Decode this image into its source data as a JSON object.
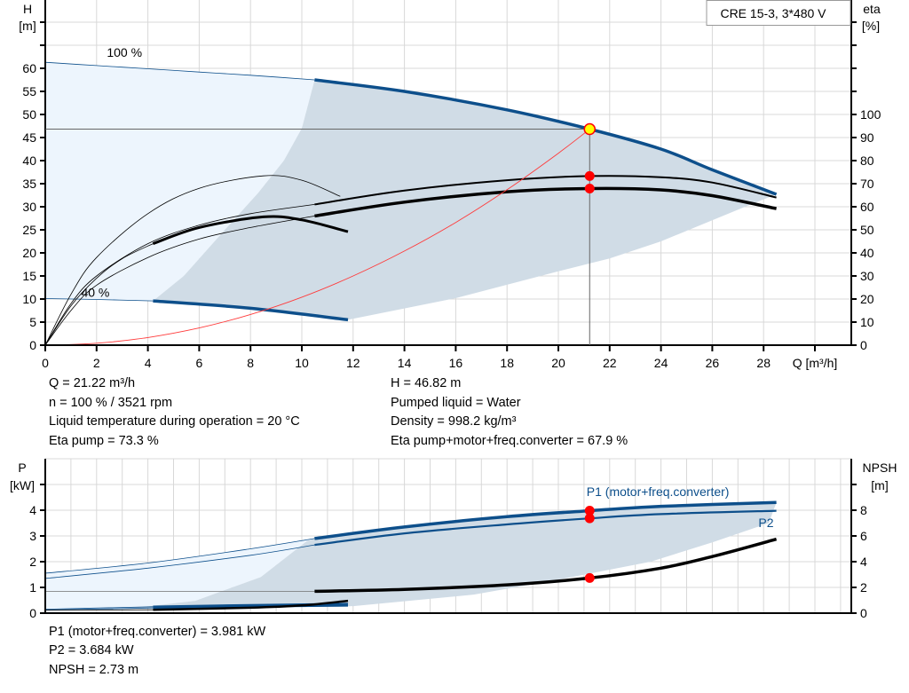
{
  "chart_data": [
    {
      "type": "line",
      "model_label": "CRE 15-3, 3*480 V",
      "xlabel": "Q [m³/h]",
      "ylabel_left": {
        "name": "H",
        "unit": "[m]"
      },
      "ylabel_right": {
        "name": "eta",
        "unit": "[%]"
      },
      "xlim": [
        0,
        31.4
      ],
      "ylim_left": [
        0,
        75
      ],
      "ylim_right": [
        0,
        150
      ],
      "x_ticks": [
        "0",
        "2",
        "4",
        "6",
        "8",
        "10",
        "12",
        "14",
        "16",
        "18",
        "20",
        "22",
        "24",
        "26",
        "28"
      ],
      "y_ticks_left": [
        "0",
        "5",
        "10",
        "15",
        "20",
        "25",
        "30",
        "35",
        "40",
        "45",
        "50",
        "55",
        "60"
      ],
      "y_ticks_right": [
        "0",
        "10",
        "20",
        "30",
        "40",
        "50",
        "60",
        "70",
        "80",
        "90",
        "100"
      ],
      "grid": true,
      "speed_labels": [
        {
          "text": "100 %",
          "q": 2.4,
          "h": 63.5
        },
        {
          "text": "40 %",
          "q": 1.4,
          "h": 11.4
        }
      ],
      "regions": [
        {
          "fill": "#edf5fd",
          "axis": "left",
          "points": [
            [
              0,
              61.3
            ],
            [
              2,
              60.6
            ],
            [
              4,
              59.9
            ],
            [
              6,
              59.2
            ],
            [
              8,
              58.5
            ],
            [
              10.5,
              57.5
            ],
            [
              10,
              47
            ],
            [
              9.3,
              40
            ],
            [
              8.3,
              33
            ],
            [
              7,
              25
            ],
            [
              5.4,
              15
            ],
            [
              4.2,
              9.6
            ],
            [
              2,
              9.9
            ],
            [
              0,
              10.1
            ]
          ]
        },
        {
          "fill": "#d0dce6",
          "axis": "left",
          "points": [
            [
              4.2,
              9.6
            ],
            [
              5.4,
              15
            ],
            [
              7,
              25
            ],
            [
              8.3,
              33
            ],
            [
              9.3,
              40
            ],
            [
              10,
              47
            ],
            [
              10.5,
              57.5
            ],
            [
              14,
              55
            ],
            [
              18,
              51
            ],
            [
              21.22,
              46.82
            ],
            [
              24,
              42.5
            ],
            [
              26,
              38
            ],
            [
              28.5,
              32.7
            ],
            [
              27.5,
              30.5
            ],
            [
              24,
              22.5
            ],
            [
              22,
              18.8
            ],
            [
              20,
              16
            ],
            [
              16,
              10.2
            ],
            [
              11.8,
              5.5
            ],
            [
              8,
              8
            ],
            [
              4.2,
              9.6
            ]
          ]
        }
      ],
      "series": [
        {
          "quantity": "H",
          "speed": "100 %",
          "axis": "left",
          "color": "#0d4f8b",
          "emphasized_from": 10.5,
          "points": [
            [
              0,
              61.3
            ],
            [
              2,
              60.6
            ],
            [
              4,
              59.9
            ],
            [
              6,
              59.2
            ],
            [
              8,
              58.5
            ],
            [
              10.5,
              57.5
            ],
            [
              14,
              55.0
            ],
            [
              18,
              51.0
            ],
            [
              21.22,
              46.82
            ],
            [
              24,
              42.5
            ],
            [
              26,
              38.0
            ],
            [
              28.5,
              32.7
            ]
          ]
        },
        {
          "quantity": "H",
          "speed": "40 %",
          "axis": "left",
          "color": "#0d4f8b",
          "emphasized_from": 4.2,
          "points": [
            [
              0,
              10.1
            ],
            [
              2,
              9.9
            ],
            [
              4.2,
              9.6
            ],
            [
              8,
              8.0
            ],
            [
              11.8,
              5.5
            ]
          ]
        },
        {
          "quantity": "Eta pump",
          "speed": "100 %",
          "axis": "right",
          "color": "#000000",
          "emphasized_from": 10.5,
          "weight": 2,
          "points": [
            [
              0,
              0
            ],
            [
              1,
              18
            ],
            [
              2,
              30
            ],
            [
              4,
              44
            ],
            [
              6,
              52
            ],
            [
              8,
              57
            ],
            [
              10.5,
              61
            ],
            [
              14,
              67
            ],
            [
              18,
              71.5
            ],
            [
              21.22,
              73.3
            ],
            [
              24,
              72.8
            ],
            [
              26,
              70.5
            ],
            [
              28.5,
              64
            ]
          ]
        },
        {
          "quantity": "Eta pump+motor+freq.converter",
          "speed": "100 %",
          "axis": "right",
          "color": "#000000",
          "emphasized_from": 10.5,
          "weight": 3.5,
          "points": [
            [
              0,
              0
            ],
            [
              1,
              15
            ],
            [
              2,
              26
            ],
            [
              4,
              38
            ],
            [
              6,
              46
            ],
            [
              8,
              51
            ],
            [
              10.5,
              56
            ],
            [
              14,
              62
            ],
            [
              18,
              66.5
            ],
            [
              21.22,
              67.9
            ],
            [
              24,
              67.3
            ],
            [
              26,
              64.8
            ],
            [
              28.5,
              59.2
            ]
          ]
        },
        {
          "quantity": "Eta pump",
          "speed": "40 %",
          "axis": "right",
          "color": "#000000",
          "emphasized_from": 99,
          "points": [
            [
              0,
              0
            ],
            [
              1,
              22
            ],
            [
              2,
              38
            ],
            [
              4,
              57
            ],
            [
              6,
              68
            ],
            [
              8.5,
              73.4
            ],
            [
              10,
              71.5
            ],
            [
              11.5,
              64.5
            ]
          ]
        },
        {
          "quantity": "Eta pump+motor+freq.converter",
          "speed": "40 %",
          "axis": "right",
          "color": "#000000",
          "emphasized_from": 4.2,
          "weight": 3,
          "points": [
            [
              0,
              0
            ],
            [
              1,
              17
            ],
            [
              2,
              29
            ],
            [
              3,
              37.5
            ],
            [
              4.2,
              44
            ],
            [
              6,
              51
            ],
            [
              8.5,
              55.6
            ],
            [
              10,
              54.3
            ],
            [
              11.8,
              49.2
            ]
          ]
        },
        {
          "quantity": "System curve",
          "axis": "left",
          "color": "#ff3b3b",
          "emphasized_from": 99,
          "points": [
            [
              0,
              0
            ],
            [
              2,
              0.42
            ],
            [
              4,
              1.66
            ],
            [
              6,
              3.74
            ],
            [
              8,
              6.65
            ],
            [
              10,
              10.4
            ],
            [
              12,
              15
            ],
            [
              14,
              20.4
            ],
            [
              16,
              26.6
            ],
            [
              18,
              33.7
            ],
            [
              20,
              41.6
            ],
            [
              21.22,
              46.82
            ]
          ]
        }
      ],
      "operating_point": {
        "q": 21.22,
        "h": 46.82,
        "eta_pump": 73.3,
        "eta_total": 67.9
      }
    },
    {
      "type": "line",
      "ylabel_left": {
        "name": "P",
        "unit": "[kW]"
      },
      "ylabel_right": {
        "name": "NPSH",
        "unit": "[m]"
      },
      "xlim": [
        0,
        31.4
      ],
      "ylim_left": [
        0,
        6
      ],
      "ylim_right": [
        0,
        12
      ],
      "y_ticks_left": [
        "0",
        "1",
        "2",
        "3",
        "4"
      ],
      "y_ticks_right": [
        "0",
        "2",
        "4",
        "6",
        "8"
      ],
      "grid": true,
      "regions": [
        {
          "fill": "#edf5fd",
          "axis": "left",
          "points": [
            [
              0,
              1.55
            ],
            [
              4,
              1.95
            ],
            [
              8,
              2.5
            ],
            [
              10.5,
              2.9
            ],
            [
              10.2,
              2.8
            ],
            [
              8.4,
              1.4
            ],
            [
              5.85,
              0.48
            ],
            [
              3,
              0.15
            ],
            [
              0.07,
              0.03
            ],
            [
              0,
              0.05
            ]
          ]
        },
        {
          "fill": "#d0dce6",
          "axis": "left",
          "points": [
            [
              0.07,
              0.03
            ],
            [
              3,
              0.15
            ],
            [
              5.85,
              0.48
            ],
            [
              8.4,
              1.4
            ],
            [
              10.2,
              2.8
            ],
            [
              10.5,
              2.9
            ],
            [
              14,
              3.35
            ],
            [
              18,
              3.75
            ],
            [
              21.22,
              3.981
            ],
            [
              24,
              4.15
            ],
            [
              28.5,
              4.3
            ],
            [
              28.2,
              3.5
            ],
            [
              26,
              2.75
            ],
            [
              23.6,
              2.0
            ],
            [
              20,
              1.3
            ],
            [
              16.7,
              0.72
            ],
            [
              12,
              0.27
            ],
            [
              4.2,
              0.2
            ],
            [
              0.07,
              0.03
            ]
          ]
        }
      ],
      "series": [
        {
          "name": "P1 (motor+freq.converter)",
          "speed": "100 %",
          "axis": "left",
          "color": "#0d4f8b",
          "emphasized_from": 10.5,
          "weight": 3.5,
          "points": [
            [
              0,
              1.55
            ],
            [
              4,
              1.95
            ],
            [
              8,
              2.5
            ],
            [
              10.5,
              2.9
            ],
            [
              14,
              3.35
            ],
            [
              18,
              3.75
            ],
            [
              21.22,
              3.981
            ],
            [
              24,
              4.15
            ],
            [
              28.5,
              4.3
            ]
          ]
        },
        {
          "name": "P2",
          "speed": "100 %",
          "axis": "left",
          "color": "#0d4f8b",
          "emphasized_from": 10.5,
          "weight": 2.2,
          "points": [
            [
              0,
              1.35
            ],
            [
              4,
              1.75
            ],
            [
              8,
              2.25
            ],
            [
              10.5,
              2.65
            ],
            [
              14,
              3.1
            ],
            [
              18,
              3.45
            ],
            [
              21.22,
              3.684
            ],
            [
              24,
              3.85
            ],
            [
              28.5,
              3.98
            ]
          ]
        },
        {
          "quantity": "NPSH",
          "speed": "100 %",
          "axis": "right",
          "color": "#000000",
          "emphasized_from": 10.5,
          "weight": 3.5,
          "thin_color": "#707070",
          "points": [
            [
              0,
              1.7
            ],
            [
              10.5,
              1.7
            ],
            [
              14,
              1.85
            ],
            [
              18,
              2.2
            ],
            [
              21.22,
              2.73
            ],
            [
              24,
              3.5
            ],
            [
              26,
              4.4
            ],
            [
              28.5,
              5.75
            ]
          ]
        },
        {
          "quantity": "P1 (motor+freq.converter)",
          "speed": "40 %",
          "axis": "left",
          "color": "#0d4f8b",
          "emphasized_from": 4.2,
          "weight": 2.5,
          "points": [
            [
              0,
              0.15
            ],
            [
              4.2,
              0.25
            ],
            [
              8,
              0.31
            ],
            [
              11.8,
              0.36
            ]
          ]
        },
        {
          "quantity": "P2",
          "speed": "40 %",
          "axis": "left",
          "color": "#0d4f8b",
          "emphasized_from": 4.2,
          "weight": 2,
          "points": [
            [
              0,
              0.12
            ],
            [
              4.2,
              0.2
            ],
            [
              8,
              0.25
            ],
            [
              11.8,
              0.29
            ]
          ]
        },
        {
          "quantity": "NPSH",
          "speed": "40 %",
          "axis": "right",
          "color": "#000000",
          "emphasized_from": 4.2,
          "weight": 2.5,
          "points": [
            [
              0,
              0.24
            ],
            [
              4.2,
              0.26
            ],
            [
              8,
              0.42
            ],
            [
              10,
              0.6
            ],
            [
              11.8,
              0.96
            ]
          ]
        }
      ],
      "series_labels": [
        {
          "text": "P1 (motor+freq.converter)",
          "q": 21.1,
          "p": 4.55
        },
        {
          "text": "P2",
          "q": 27.8,
          "p": 3.35
        }
      ],
      "operating_point": {
        "p1": 3.981,
        "p2": 3.684,
        "npsh": 2.73
      }
    }
  ],
  "info_top": {
    "left": [
      "Q = 21.22 m³/h",
      "n = 100 % / 3521 rpm",
      "Liquid temperature during operation = 20 °C",
      "Eta pump = 73.3 %"
    ],
    "right": [
      "H = 46.82 m",
      "Pumped liquid = Water",
      "Density = 998.2 kg/m³",
      "Eta pump+motor+freq.converter = 67.9 %"
    ]
  },
  "info_bottom": [
    "P1 (motor+freq.converter) = 3.981 kW",
    "P2 = 3.684 kW",
    "NPSH = 2.73 m"
  ],
  "colors": {
    "curve_blue": "#0d4f8b",
    "op_point_fill": "#ffff00",
    "dot_red": "#ff0000",
    "grid": "#d8d8d8"
  }
}
